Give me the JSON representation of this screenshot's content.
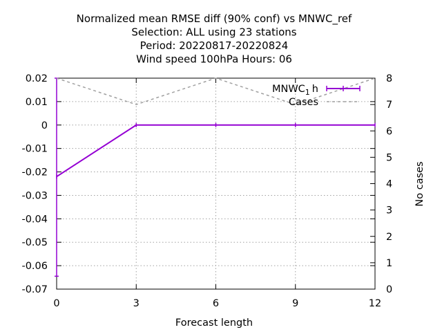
{
  "chart_data": {
    "type": "line",
    "title_lines": [
      "Normalized mean RMSE diff (90% conf) vs MNWC_ref",
      "Selection: ALL using    23 stations",
      "Period: 20220817-20220824",
      "Wind speed 100hPa   Hours:  06"
    ],
    "xlabel": "Forecast length",
    "ylabel": "",
    "y2label": "No cases",
    "xlim": [
      0,
      12
    ],
    "ylim": [
      -0.07,
      0.02
    ],
    "y2lim": [
      0,
      8
    ],
    "x_ticks": [
      "0",
      "3",
      "6",
      "9",
      "12"
    ],
    "y_ticks": [
      "0.02",
      "0.01",
      "0",
      "-0.01",
      "-0.02",
      "-0.03",
      "-0.04",
      "-0.05",
      "-0.06",
      "-0.07"
    ],
    "y2_ticks": [
      "0",
      "1",
      "2",
      "3",
      "4",
      "5",
      "6",
      "7",
      "8"
    ],
    "grid": true,
    "legend_position": "top-right",
    "series": [
      {
        "name": "MNWC_1h",
        "legend_main": "MNWC",
        "legend_sub": "1",
        "legend_suffix": "h",
        "axis": "y",
        "color": "#9400d3",
        "style": "solid-errorbars",
        "x": [
          0,
          3,
          6,
          9,
          12
        ],
        "values": [
          -0.022,
          0.0,
          0.0,
          0.0,
          0.0
        ],
        "error_low": [
          -0.0645,
          0.0,
          0.0,
          0.0,
          0.0
        ],
        "error_high": [
          0.02,
          0.0,
          0.0,
          0.0,
          0.0
        ]
      },
      {
        "name": "Cases",
        "axis": "y2",
        "color": "#a0a0a0",
        "style": "dashed",
        "x": [
          0,
          3,
          6,
          9,
          12
        ],
        "values": [
          8,
          7,
          8,
          7,
          8
        ]
      }
    ]
  }
}
